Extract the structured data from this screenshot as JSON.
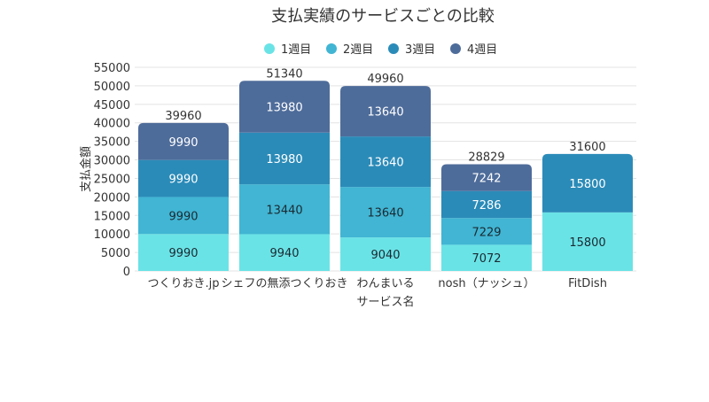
{
  "chart_data": {
    "type": "bar",
    "stacked": true,
    "title": "支払実績のサービスごとの比較",
    "xlabel": "サービス名",
    "ylabel": "支払金額",
    "ylim": [
      0,
      55000
    ],
    "yticks": [
      0,
      5000,
      10000,
      15000,
      20000,
      25000,
      30000,
      35000,
      40000,
      45000,
      50000,
      55000
    ],
    "grid": true,
    "legend_position": "top",
    "categories": [
      "つくりおき.jp",
      "シェフの無添つくりおき",
      "わんまいる",
      "nosh（ナッシュ）",
      "FitDish"
    ],
    "series": [
      {
        "name": "1週目",
        "color": "#6ae3e6",
        "values": [
          9990,
          9940,
          9040,
          7072,
          15800
        ]
      },
      {
        "name": "2週目",
        "color": "#41b5d3",
        "values": [
          9990,
          13440,
          13640,
          7229,
          0
        ]
      },
      {
        "name": "3週目",
        "color": "#2b8bb8",
        "values": [
          9990,
          13980,
          13640,
          7286,
          15800
        ]
      },
      {
        "name": "4週目",
        "color": "#4e6c9a",
        "values": [
          9990,
          13980,
          13640,
          7242,
          0
        ]
      }
    ],
    "totals": [
      39960,
      51340,
      49960,
      28829,
      31600
    ]
  }
}
